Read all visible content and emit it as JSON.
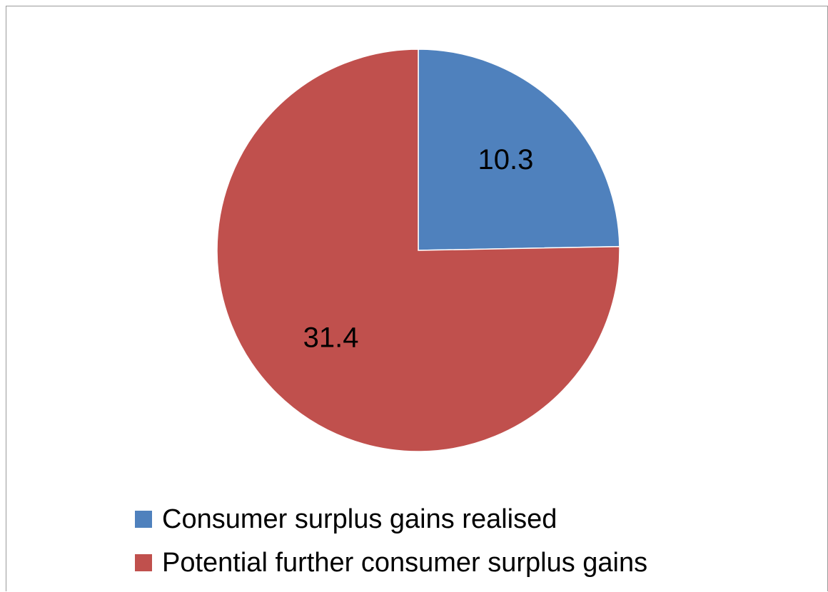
{
  "chart_data": {
    "type": "pie",
    "categories": [
      "Consumer surplus gains realised",
      "Potential further consumer surplus gains"
    ],
    "values": [
      10.3,
      31.4
    ],
    "data_labels": [
      "10.3",
      "31.4"
    ],
    "colors": [
      "#4f81bd",
      "#c0504d"
    ],
    "title": "",
    "legend_position": "bottom",
    "start_angle_deg": 0,
    "direction": "clockwise"
  }
}
